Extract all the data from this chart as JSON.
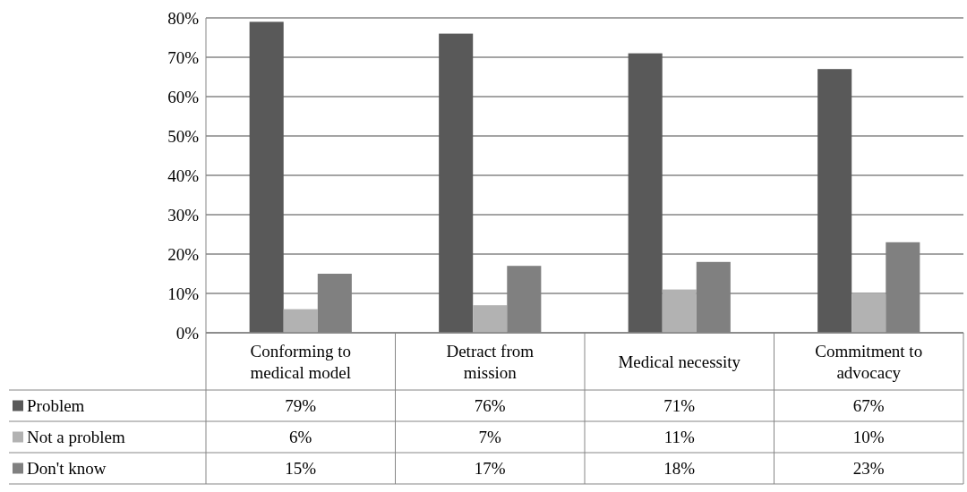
{
  "chart_data": {
    "type": "bar",
    "categories": [
      "Conforming to medical model",
      "Detract from mission",
      "Medical necessity",
      "Commitment to advocacy"
    ],
    "series": [
      {
        "name": "Problem",
        "color": "#595959",
        "values": [
          79,
          76,
          71,
          67
        ],
        "value_labels": [
          "79%",
          "76%",
          "71%",
          "67%"
        ]
      },
      {
        "name": "Not a problem",
        "color": "#b2b2b2",
        "values": [
          6,
          7,
          11,
          10
        ],
        "value_labels": [
          "6%",
          "7%",
          "11%",
          "10%"
        ]
      },
      {
        "name": "Don't know",
        "color": "#808080",
        "values": [
          15,
          17,
          18,
          23
        ],
        "value_labels": [
          "15%",
          "17%",
          "18%",
          "23%"
        ]
      }
    ],
    "ylim": [
      0,
      80
    ],
    "yticks": [
      {
        "value": 0,
        "label": "0%"
      },
      {
        "value": 10,
        "label": "10%"
      },
      {
        "value": 20,
        "label": "20%"
      },
      {
        "value": 30,
        "label": "30%"
      },
      {
        "value": 40,
        "label": "40%"
      },
      {
        "value": 50,
        "label": "50%"
      },
      {
        "value": 60,
        "label": "60%"
      },
      {
        "value": 70,
        "label": "70%"
      },
      {
        "value": 80,
        "label": "80%"
      }
    ],
    "grid": "y",
    "legend": "bottom"
  }
}
